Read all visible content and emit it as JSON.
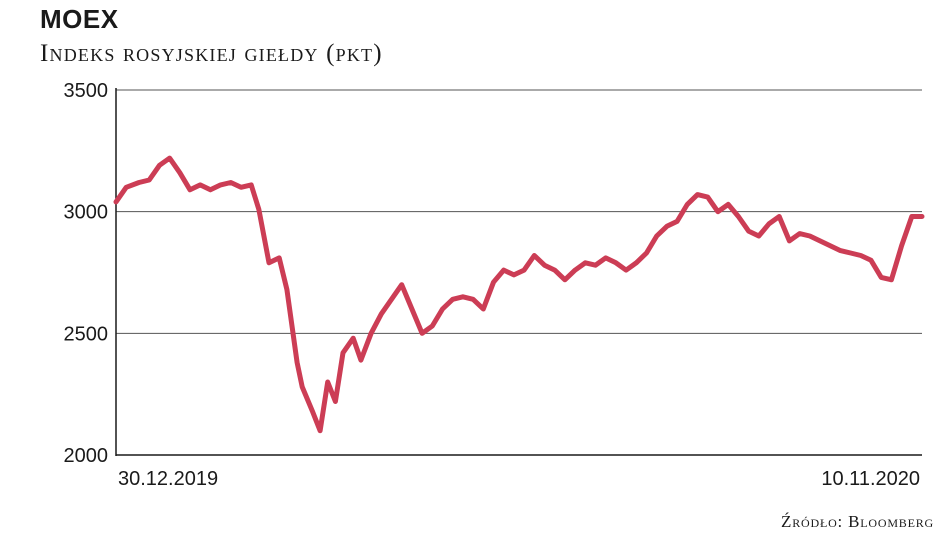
{
  "title": "MOEX",
  "subtitle": "Indeks rosyjskiej giełdy (pkt)",
  "source": "Źródło: Bloomberg",
  "chart_data": {
    "type": "line",
    "title": "MOEX",
    "subtitle": "Indeks rosyjskiej giełdy (pkt)",
    "ylim": [
      2000,
      3500
    ],
    "yticks": [
      2000,
      2500,
      3000,
      3500
    ],
    "ytick_labels": [
      "2000",
      "2500",
      "3000",
      "3500"
    ],
    "xlim": [
      "2019-12-30",
      "2020-11-10"
    ],
    "x_labels": [
      "30.12.2019",
      "10.11.2020"
    ],
    "grid": "horizontal",
    "line_color": "#cc3d55",
    "series": [
      {
        "x": [
          "2019-12-30",
          "2020-01-03",
          "2020-01-08",
          "2020-01-12",
          "2020-01-16",
          "2020-01-20",
          "2020-01-24",
          "2020-01-28",
          "2020-02-01",
          "2020-02-05",
          "2020-02-09",
          "2020-02-13",
          "2020-02-17",
          "2020-02-21",
          "2020-02-24",
          "2020-02-28",
          "2020-03-03",
          "2020-03-06",
          "2020-03-10",
          "2020-03-12",
          "2020-03-16",
          "2020-03-19",
          "2020-03-22",
          "2020-03-25",
          "2020-03-28",
          "2020-04-01",
          "2020-04-04",
          "2020-04-08",
          "2020-04-12",
          "2020-04-16",
          "2020-04-20",
          "2020-04-24",
          "2020-04-28",
          "2020-05-02",
          "2020-05-06",
          "2020-05-10",
          "2020-05-14",
          "2020-05-18",
          "2020-05-22",
          "2020-05-26",
          "2020-05-30",
          "2020-06-03",
          "2020-06-07",
          "2020-06-11",
          "2020-06-15",
          "2020-06-19",
          "2020-06-23",
          "2020-06-27",
          "2020-07-01",
          "2020-07-05",
          "2020-07-09",
          "2020-07-13",
          "2020-07-17",
          "2020-07-21",
          "2020-07-25",
          "2020-07-29",
          "2020-08-02",
          "2020-08-06",
          "2020-08-10",
          "2020-08-14",
          "2020-08-18",
          "2020-08-22",
          "2020-08-26",
          "2020-08-30",
          "2020-09-03",
          "2020-09-07",
          "2020-09-11",
          "2020-09-15",
          "2020-09-19",
          "2020-09-23",
          "2020-09-27",
          "2020-10-01",
          "2020-10-05",
          "2020-10-09",
          "2020-10-13",
          "2020-10-17",
          "2020-10-21",
          "2020-10-25",
          "2020-10-29",
          "2020-11-02",
          "2020-11-06",
          "2020-11-10"
        ],
        "values": [
          3040,
          3100,
          3120,
          3130,
          3190,
          3220,
          3160,
          3090,
          3110,
          3090,
          3110,
          3120,
          3100,
          3110,
          3010,
          2790,
          2810,
          2680,
          2380,
          2280,
          2180,
          2100,
          2300,
          2220,
          2420,
          2480,
          2390,
          2500,
          2580,
          2640,
          2700,
          2600,
          2500,
          2530,
          2600,
          2640,
          2650,
          2640,
          2600,
          2710,
          2760,
          2740,
          2760,
          2820,
          2780,
          2760,
          2720,
          2760,
          2790,
          2780,
          2810,
          2790,
          2760,
          2790,
          2830,
          2900,
          2940,
          2960,
          3030,
          3070,
          3060,
          3000,
          3030,
          2980,
          2920,
          2900,
          2950,
          2980,
          2880,
          2910,
          2900,
          2880,
          2860,
          2840,
          2830,
          2820,
          2800,
          2730,
          2720,
          2860,
          2980,
          2980
        ]
      }
    ]
  }
}
